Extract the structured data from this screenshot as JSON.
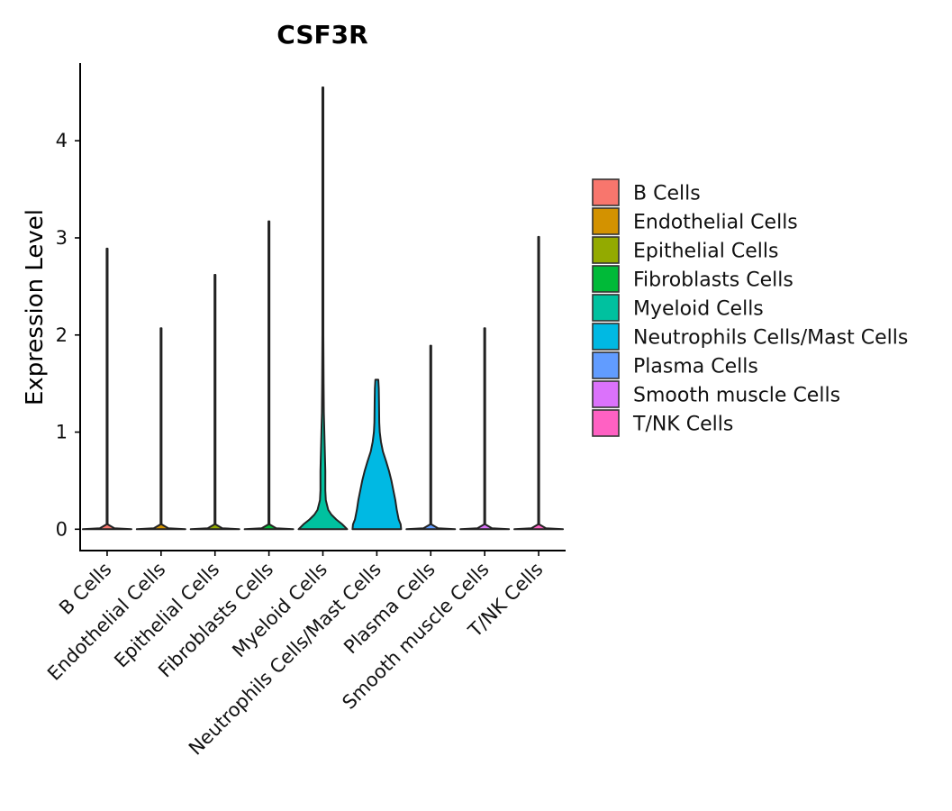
{
  "chart_data": {
    "type": "violin",
    "title": "CSF3R",
    "xlabel": "",
    "ylabel": "Expression Level",
    "ylim": [
      -0.22,
      4.8
    ],
    "yticks": [
      0,
      1,
      2,
      3,
      4
    ],
    "categories": [
      "B Cells",
      "Endothelial Cells",
      "Epithelial Cells",
      "Fibroblasts Cells",
      "Myeloid Cells",
      "Neutrophils Cells/Mast Cells",
      "Plasma Cells",
      "Smooth muscle Cells",
      "T/NK Cells"
    ],
    "colors": [
      "#F8766D",
      "#D39200",
      "#93AA00",
      "#00BA38",
      "#00C19F",
      "#00B9E3",
      "#619CFF",
      "#DB72FB",
      "#FF61C3"
    ],
    "max_values": [
      2.89,
      2.07,
      2.62,
      3.17,
      4.55,
      1.54,
      1.89,
      2.07,
      3.01
    ],
    "shapes": [
      [
        [
          0,
          1.0
        ],
        [
          0.01,
          0.3
        ],
        [
          0.05,
          0.02
        ],
        [
          2.89,
          0.02
        ]
      ],
      [
        [
          0,
          1.0
        ],
        [
          0.01,
          0.3
        ],
        [
          0.05,
          0.02
        ],
        [
          2.07,
          0.02
        ]
      ],
      [
        [
          0,
          1.0
        ],
        [
          0.01,
          0.3
        ],
        [
          0.05,
          0.02
        ],
        [
          2.62,
          0.02
        ]
      ],
      [
        [
          0,
          1.0
        ],
        [
          0.01,
          0.3
        ],
        [
          0.05,
          0.02
        ],
        [
          3.17,
          0.02
        ]
      ],
      [
        [
          0,
          1.0
        ],
        [
          0.05,
          0.8
        ],
        [
          0.1,
          0.55
        ],
        [
          0.15,
          0.35
        ],
        [
          0.2,
          0.22
        ],
        [
          0.3,
          0.12
        ],
        [
          0.4,
          0.1
        ],
        [
          0.6,
          0.1
        ],
        [
          0.8,
          0.08
        ],
        [
          1.0,
          0.06
        ],
        [
          1.2,
          0.04
        ],
        [
          1.5,
          0.03
        ],
        [
          2.0,
          0.02
        ],
        [
          4.55,
          0.02
        ]
      ],
      [
        [
          0,
          1.0
        ],
        [
          0.05,
          0.98
        ],
        [
          0.1,
          0.9
        ],
        [
          0.2,
          0.82
        ],
        [
          0.3,
          0.76
        ],
        [
          0.4,
          0.68
        ],
        [
          0.5,
          0.6
        ],
        [
          0.6,
          0.5
        ],
        [
          0.7,
          0.38
        ],
        [
          0.8,
          0.25
        ],
        [
          0.9,
          0.17
        ],
        [
          1.0,
          0.12
        ],
        [
          1.1,
          0.1
        ],
        [
          1.3,
          0.09
        ],
        [
          1.45,
          0.08
        ],
        [
          1.54,
          0.06
        ]
      ],
      [
        [
          0,
          1.0
        ],
        [
          0.01,
          0.3
        ],
        [
          0.05,
          0.02
        ],
        [
          1.89,
          0.02
        ]
      ],
      [
        [
          0,
          1.0
        ],
        [
          0.01,
          0.3
        ],
        [
          0.05,
          0.02
        ],
        [
          2.07,
          0.02
        ]
      ],
      [
        [
          0,
          1.0
        ],
        [
          0.01,
          0.3
        ],
        [
          0.05,
          0.02
        ],
        [
          3.01,
          0.02
        ]
      ]
    ],
    "legend": {
      "position": "right",
      "entries": [
        "B Cells",
        "Endothelial Cells",
        "Epithelial Cells",
        "Fibroblasts Cells",
        "Myeloid Cells",
        "Neutrophils Cells/Mast Cells",
        "Plasma Cells",
        "Smooth muscle Cells",
        "T/NK Cells"
      ]
    }
  }
}
